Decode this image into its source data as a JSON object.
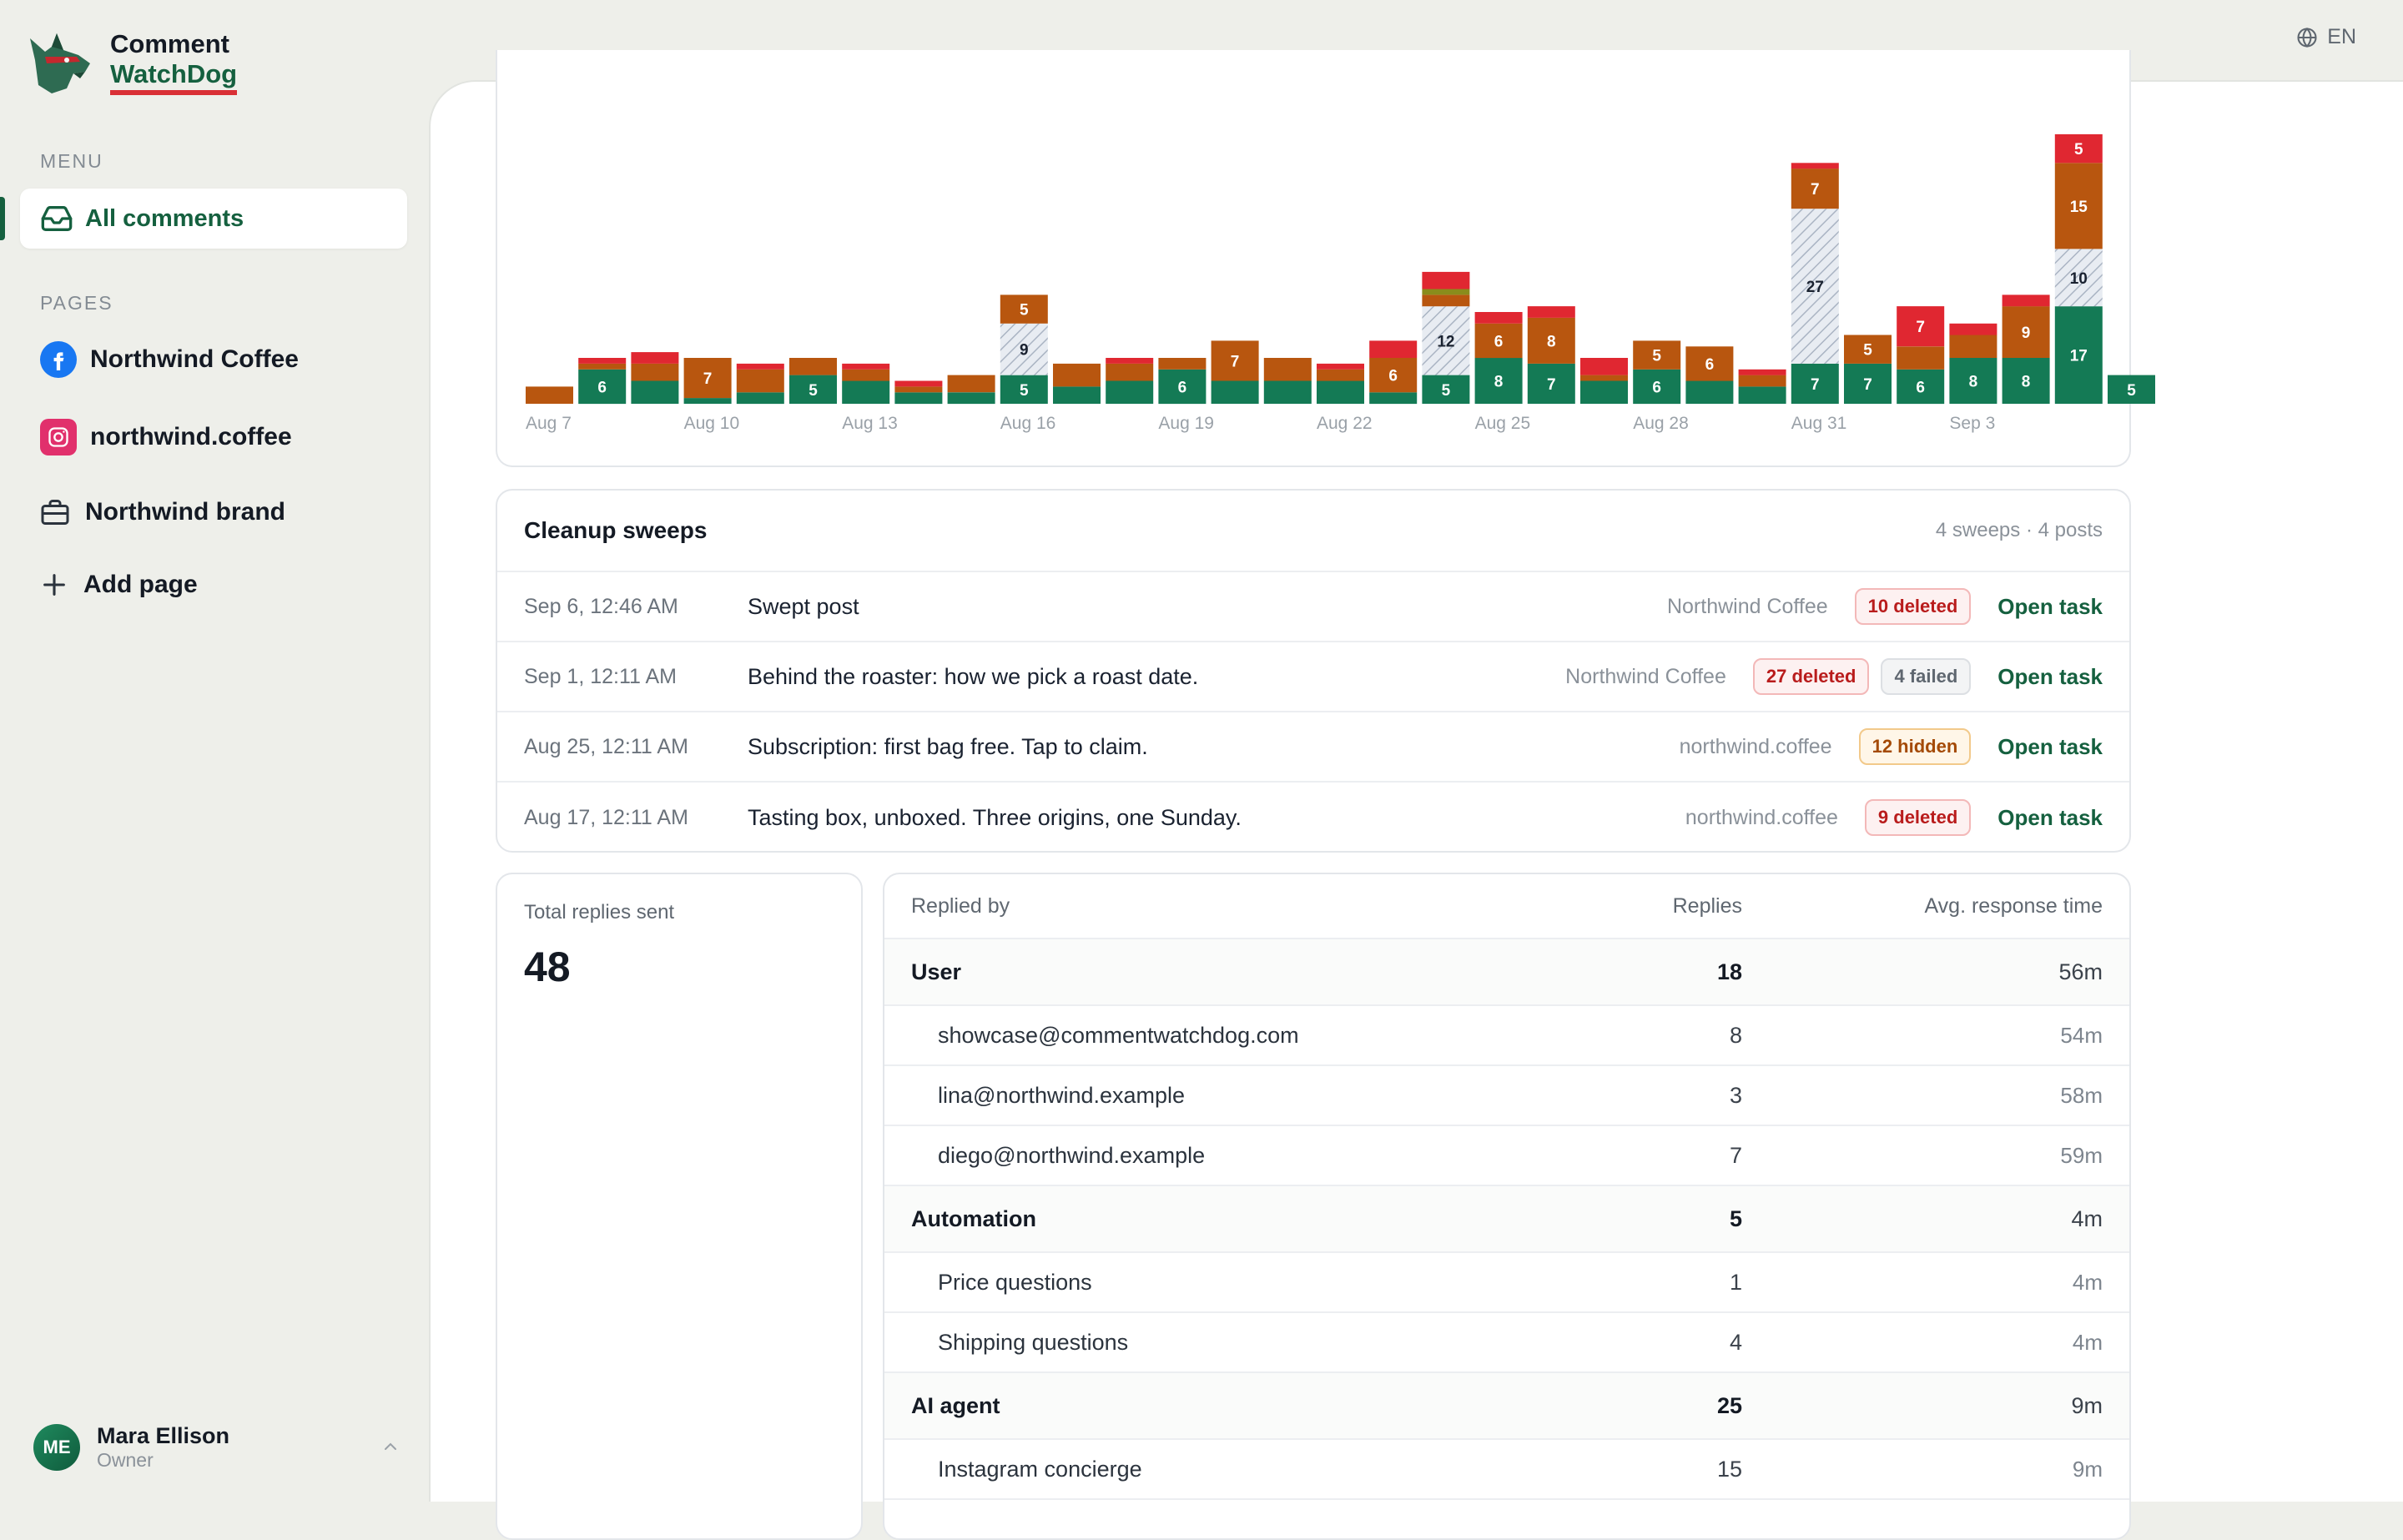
{
  "app": {
    "brand_line1": "Comment",
    "brand_line2": "WatchDog",
    "language": "EN"
  },
  "sidebar": {
    "menu_label": "MENU",
    "menu_items": [
      {
        "label": "All comments",
        "icon": "inbox-icon",
        "active": true
      }
    ],
    "pages_label": "PAGES",
    "pages": [
      {
        "label": "Northwind Coffee",
        "icon": "facebook-icon",
        "color": "#1877f2"
      },
      {
        "label": "northwind.coffee",
        "icon": "instagram-icon",
        "color": "#e1306c"
      },
      {
        "label": "Northwind brand",
        "icon": "briefcase-icon"
      }
    ],
    "add_page_label": "Add page"
  },
  "user": {
    "initials": "ME",
    "name": "Mara Ellison",
    "role": "Owner"
  },
  "colors": {
    "green": "#147a55",
    "orange": "#b8560f",
    "red": "#e02731",
    "olive": "#8a8c1c",
    "brand_green": "#15603f"
  },
  "chart_data": {
    "type": "bar",
    "stacked": true,
    "x_tick_labels": [
      "Aug 7",
      "Aug 10",
      "Aug 13",
      "Aug 16",
      "Aug 19",
      "Aug 22",
      "Aug 25",
      "Aug 28",
      "Aug 31",
      "Sep 3"
    ],
    "categories": [
      "Aug 7",
      "Aug 8",
      "Aug 9",
      "Aug 10",
      "Aug 11",
      "Aug 12",
      "Aug 13",
      "Aug 14",
      "Aug 15",
      "Aug 16",
      "Aug 17",
      "Aug 18",
      "Aug 19",
      "Aug 20",
      "Aug 21",
      "Aug 22",
      "Aug 23",
      "Aug 24",
      "Aug 25",
      "Aug 26",
      "Aug 27",
      "Aug 28",
      "Aug 29",
      "Aug 30",
      "Aug 31",
      "Sep 1",
      "Sep 2",
      "Sep 3",
      "Sep 4",
      "Sep 5",
      "Sep 6"
    ],
    "series": [
      {
        "color": "#147a55",
        "values": [
          0,
          6,
          4,
          1,
          2,
          5,
          4,
          2,
          2,
          5,
          3,
          4,
          6,
          4,
          4,
          4,
          2,
          5,
          8,
          7,
          4,
          6,
          4,
          3,
          7,
          7,
          6,
          8,
          8,
          17,
          5
        ]
      },
      {
        "color": "#d3dae3",
        "hatched": true,
        "values": [
          0,
          0,
          0,
          0,
          0,
          0,
          0,
          0,
          0,
          9,
          0,
          0,
          0,
          0,
          0,
          0,
          0,
          12,
          0,
          0,
          0,
          0,
          0,
          0,
          27,
          0,
          0,
          0,
          0,
          10,
          0
        ]
      },
      {
        "color": "#b8560f",
        "values": [
          3,
          1,
          3,
          7,
          4,
          3,
          2,
          1,
          3,
          5,
          4,
          3,
          2,
          7,
          4,
          2,
          6,
          2,
          6,
          8,
          1,
          5,
          6,
          2,
          7,
          5,
          4,
          4,
          9,
          15,
          0
        ]
      },
      {
        "color": "#8a8c1c",
        "values": [
          0,
          0,
          0,
          0,
          0,
          0,
          0,
          0,
          0,
          0,
          0,
          0,
          0,
          0,
          0,
          0,
          0,
          1,
          0,
          0,
          0,
          0,
          0,
          0,
          0,
          0,
          0,
          0,
          0,
          0,
          0
        ]
      },
      {
        "color": "#e02731",
        "values": [
          0,
          1,
          2,
          0,
          1,
          0,
          1,
          1,
          0,
          0,
          0,
          1,
          0,
          0,
          0,
          1,
          3,
          3,
          2,
          2,
          3,
          0,
          0,
          1,
          1,
          0,
          7,
          2,
          2,
          5,
          0
        ]
      }
    ],
    "ylim": [
      0,
      48
    ]
  },
  "sweeps": {
    "title": "Cleanup sweeps",
    "meta": "4 sweeps · 4 posts",
    "rows": [
      {
        "date": "Sep 6, 12:46 AM",
        "title": "Swept post",
        "page": "Northwind Coffee",
        "badges": [
          {
            "text": "10 deleted",
            "kind": "deleted"
          }
        ],
        "action": "Open task"
      },
      {
        "date": "Sep 1, 12:11 AM",
        "title": "Behind the roaster: how we pick a roast date.",
        "page": "Northwind Coffee",
        "badges": [
          {
            "text": "27 deleted",
            "kind": "deleted"
          },
          {
            "text": "4 failed",
            "kind": "failed"
          }
        ],
        "action": "Open task"
      },
      {
        "date": "Aug 25, 12:11 AM",
        "title": "Subscription: first bag free. Tap to claim.",
        "page": "northwind.coffee",
        "badges": [
          {
            "text": "12 hidden",
            "kind": "hidden"
          }
        ],
        "action": "Open task"
      },
      {
        "date": "Aug 17, 12:11 AM",
        "title": "Tasting box, unboxed. Three origins, one Sunday.",
        "page": "northwind.coffee",
        "badges": [
          {
            "text": "9 deleted",
            "kind": "deleted"
          }
        ],
        "action": "Open task"
      }
    ]
  },
  "totals": {
    "label": "Total replies sent",
    "value": "48"
  },
  "replies": {
    "headers": {
      "name": "Replied by",
      "replies": "Replies",
      "time": "Avg. response time"
    },
    "rows": [
      {
        "kind": "group",
        "name": "User",
        "replies": "18",
        "time": "56m"
      },
      {
        "kind": "sub",
        "name": "showcase@commentwatchdog.com",
        "replies": "8",
        "time": "54m"
      },
      {
        "kind": "sub",
        "name": "lina@northwind.example",
        "replies": "3",
        "time": "58m"
      },
      {
        "kind": "sub",
        "name": "diego@northwind.example",
        "replies": "7",
        "time": "59m"
      },
      {
        "kind": "group",
        "name": "Automation",
        "replies": "5",
        "time": "4m"
      },
      {
        "kind": "sub",
        "name": "Price questions",
        "replies": "1",
        "time": "4m"
      },
      {
        "kind": "sub",
        "name": "Shipping questions",
        "replies": "4",
        "time": "4m"
      },
      {
        "kind": "group",
        "name": "AI agent",
        "replies": "25",
        "time": "9m"
      },
      {
        "kind": "sub",
        "name": "Instagram concierge",
        "replies": "15",
        "time": "9m"
      }
    ]
  }
}
